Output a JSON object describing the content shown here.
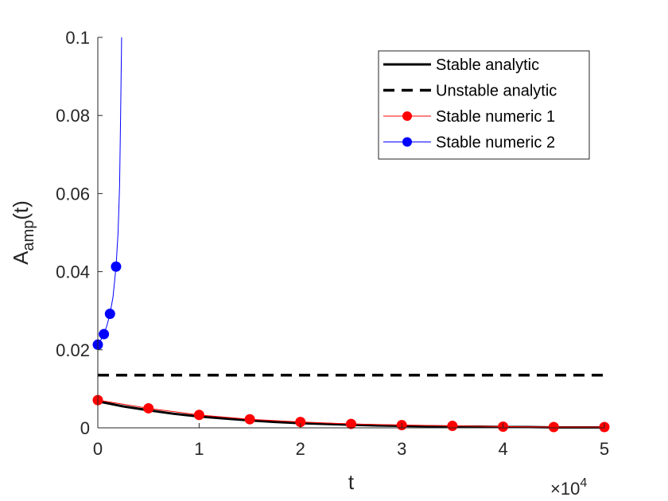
{
  "chart_data": {
    "type": "line",
    "xlabel": "t",
    "ylabel": {
      "base": "A",
      "subscript": "amp",
      "suffix": "(t)"
    },
    "xlim": [
      0,
      50000
    ],
    "ylim": [
      0,
      0.1
    ],
    "x_exponent_label": {
      "base": "×10",
      "exponent": "4"
    },
    "x_ticks": [
      0,
      10000,
      20000,
      30000,
      40000,
      50000
    ],
    "x_tick_labels": [
      "0",
      "1",
      "2",
      "3",
      "4",
      "5"
    ],
    "y_ticks": [
      0,
      0.02,
      0.04,
      0.06,
      0.08,
      0.1
    ],
    "y_tick_labels": [
      "0",
      "0.02",
      "0.04",
      "0.06",
      "0.08",
      "0.1"
    ],
    "grid": false,
    "box": "left-bottom",
    "legend_position": "top-right",
    "series": [
      {
        "name": "Stable analytic",
        "color": "#000000",
        "style": "solid",
        "marker": "none",
        "x": [
          0,
          2500,
          5000,
          7500,
          10000,
          12500,
          15000,
          17500,
          20000,
          22500,
          25000,
          27500,
          30000,
          32500,
          35000,
          37500,
          40000,
          42500,
          45000,
          47500,
          50000
        ],
        "y": [
          0.0068,
          0.0055,
          0.0045,
          0.0036,
          0.0029,
          0.0024,
          0.0019,
          0.0015,
          0.0012,
          0.001,
          0.0008,
          0.0006,
          0.0005,
          0.0004,
          0.0003,
          0.0003,
          0.0002,
          0.0002,
          0.0001,
          0.0001,
          0.0001
        ]
      },
      {
        "name": "Unstable analytic",
        "color": "#000000",
        "style": "dashed",
        "marker": "none",
        "x": [
          0,
          50000
        ],
        "y": [
          0.0135,
          0.0135
        ]
      },
      {
        "name": "Stable numeric 1",
        "color": "#ff0000",
        "style": "solid",
        "marker": "circle",
        "x": [
          0,
          5000,
          10000,
          15000,
          20000,
          25000,
          30000,
          35000,
          40000,
          45000,
          50000
        ],
        "y": [
          0.0071,
          0.005,
          0.0033,
          0.0022,
          0.0015,
          0.001,
          0.0007,
          0.0005,
          0.0003,
          0.0002,
          0.0002
        ]
      },
      {
        "name": "Stable numeric 2",
        "color": "#0000ff",
        "style": "solid",
        "marker": "circle",
        "x": [
          0,
          300,
          600,
          900,
          1200,
          1500,
          1800,
          2000,
          2150,
          2250,
          2350
        ],
        "y": [
          0.0213,
          0.0225,
          0.024,
          0.0262,
          0.0292,
          0.0335,
          0.0413,
          0.05,
          0.062,
          0.08,
          0.1
        ],
        "marker_x": [
          0,
          600,
          1200,
          1800
        ],
        "marker_y": [
          0.0213,
          0.024,
          0.0292,
          0.0413
        ]
      }
    ]
  }
}
